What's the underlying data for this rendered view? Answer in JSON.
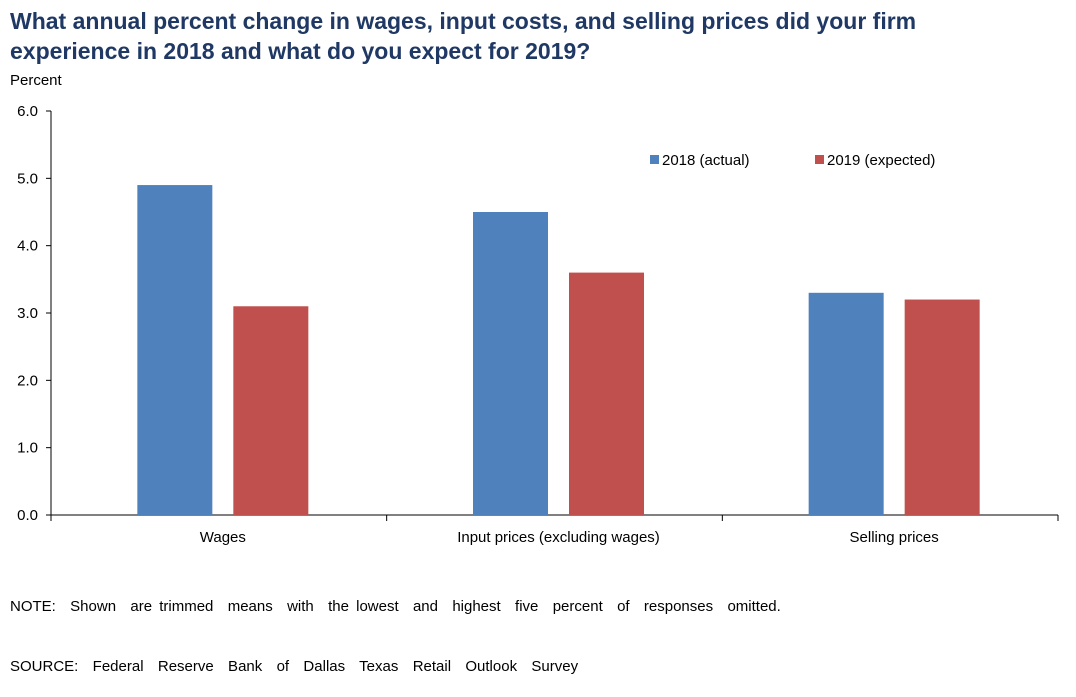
{
  "header": {
    "title_lines": [
      "What annual percent change in wages, input costs, and selling prices did your firm",
      "experience in 2018 and what do you expect for 2019?"
    ],
    "unit_label": "Percent"
  },
  "chart_data": {
    "type": "bar",
    "title": "What annual percent change in wages, input costs, and selling prices did your firm experience in 2018 and what do you expect for 2019?",
    "ylabel": "Percent",
    "xlabel": "",
    "ylim": [
      0,
      6
    ],
    "yticks": [
      "0.0",
      "1.0",
      "2.0",
      "3.0",
      "4.0",
      "5.0",
      "6.0"
    ],
    "categories": [
      "Wages",
      "Input prices (excluding wages)",
      "Selling prices"
    ],
    "series": [
      {
        "name": "2018 (actual)",
        "color": "#4F81BD",
        "values": [
          4.9,
          4.5,
          3.3
        ]
      },
      {
        "name": "2019 (expected)",
        "color": "#C0504D",
        "values": [
          3.1,
          3.6,
          3.2
        ]
      }
    ],
    "legend": "top-right",
    "grid": false
  },
  "footer": {
    "note": "NOTE:  Shown  are trimmed  means  with  the lowest  and  highest  five  percent  of  responses  omitted.",
    "source": "SOURCE:  Federal  Reserve  Bank  of  Dallas  Texas  Retail  Outlook  Survey"
  }
}
